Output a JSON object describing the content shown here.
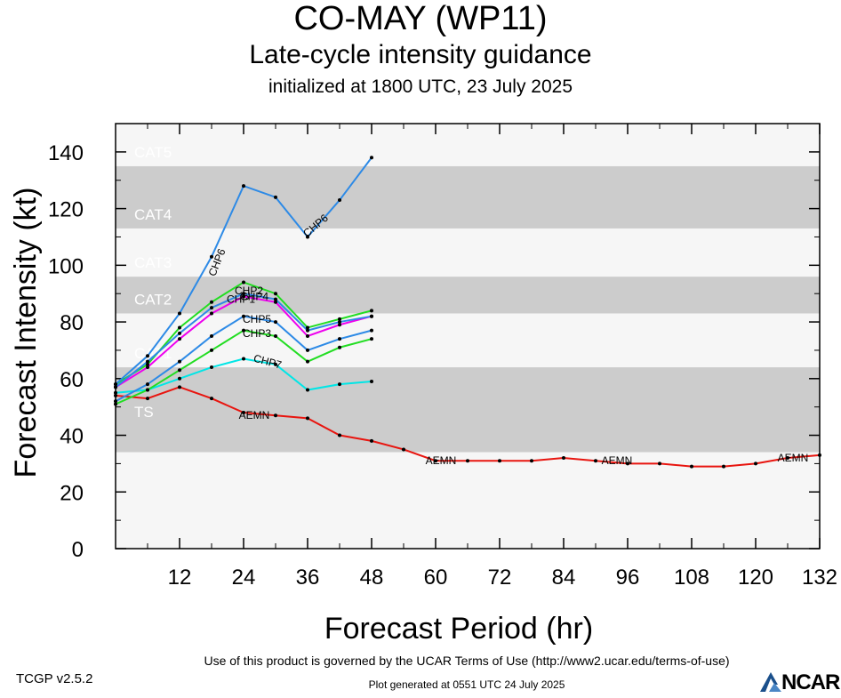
{
  "title": "CO-MAY (WP11)",
  "subtitle": "Late-cycle intensity guidance",
  "init_line": "initialized at 1800 UTC, 23 July 2025",
  "footer": {
    "terms": "Use of this product is governed by the UCAR Terms of Use (http://www2.ucar.edu/terms-of-use)",
    "version": "TCGP v2.5.2",
    "generated": "Plot generated at 0551 UTC   24 July 2025",
    "logo": "NCAR"
  },
  "chart_data": {
    "type": "line",
    "title": "CO-MAY (WP11)",
    "xlabel": "Forecast Period (hr)",
    "ylabel": "Forecast Intensity (kt)",
    "xlim": [
      0,
      132
    ],
    "ylim": [
      0,
      150
    ],
    "xticks": [
      12,
      24,
      36,
      48,
      60,
      72,
      84,
      96,
      108,
      120,
      132
    ],
    "yticks": [
      0,
      20,
      40,
      60,
      80,
      100,
      120,
      140
    ],
    "bands": [
      {
        "label": "TS",
        "from": 34,
        "to": 64,
        "color": "#cccccc"
      },
      {
        "label": "CAT1",
        "from": 64,
        "to": 83,
        "color": "#f6f6f6"
      },
      {
        "label": "CAT2",
        "from": 83,
        "to": 96,
        "color": "#cccccc"
      },
      {
        "label": "CAT3",
        "from": 96,
        "to": 113,
        "color": "#f6f6f6"
      },
      {
        "label": "CAT4",
        "from": 113,
        "to": 135,
        "color": "#cccccc"
      },
      {
        "label": "CAT5",
        "from": 135,
        "to": 150,
        "color": "#f6f6f6"
      }
    ],
    "series": [
      {
        "name": "AEMN",
        "color": "#e8150f",
        "x": [
          0,
          6,
          12,
          18,
          24,
          30,
          36,
          42,
          48,
          54,
          60,
          66,
          72,
          78,
          84,
          90,
          96,
          102,
          108,
          114,
          120,
          126,
          132
        ],
        "y": [
          54,
          53,
          57,
          53,
          48,
          47,
          46,
          40,
          38,
          35,
          31,
          31,
          31,
          31,
          32,
          31,
          30,
          30,
          29,
          29,
          30,
          32,
          33
        ]
      },
      {
        "name": "CHP7",
        "color": "#00e6e6",
        "x": [
          0,
          6,
          12,
          18,
          24,
          30,
          36,
          42,
          48
        ],
        "y": [
          55,
          56,
          60,
          64,
          67,
          65,
          56,
          58,
          59
        ]
      },
      {
        "name": "CHP3",
        "color": "#22dd22",
        "x": [
          0,
          6,
          12,
          18,
          24,
          30,
          36,
          42,
          48
        ],
        "y": [
          51,
          56,
          63,
          70,
          77,
          75,
          66,
          71,
          74
        ]
      },
      {
        "name": "CHP5",
        "color": "#2d8ae6",
        "x": [
          0,
          6,
          12,
          18,
          24,
          30,
          36,
          42,
          48
        ],
        "y": [
          52,
          58,
          66,
          75,
          82,
          80,
          70,
          74,
          77
        ]
      },
      {
        "name": "CHP4",
        "color": "#ee00ee",
        "x": [
          0,
          6,
          12,
          18,
          24,
          30,
          36,
          42,
          48
        ],
        "y": [
          57,
          64,
          74,
          83,
          89,
          87,
          75,
          79,
          82
        ]
      },
      {
        "name": "CHP2",
        "color": "#22dd22",
        "x": [
          0,
          6,
          12,
          18,
          24,
          30,
          36,
          42,
          48
        ],
        "y": [
          58,
          65,
          78,
          87,
          94,
          90,
          78,
          81,
          84
        ]
      },
      {
        "name": "CHP1",
        "color": "#2d8ae6",
        "x": [
          0,
          6,
          12,
          18,
          24,
          30,
          36,
          42,
          48
        ],
        "y": [
          57,
          66,
          76,
          85,
          90,
          88,
          77,
          80,
          82
        ]
      },
      {
        "name": "CHP6",
        "color": "#2d8ae6",
        "x": [
          0,
          6,
          12,
          18,
          24,
          30,
          36,
          42,
          48
        ],
        "y": [
          58,
          68,
          83,
          103,
          128,
          124,
          110,
          123,
          138
        ]
      }
    ],
    "line_labels": [
      {
        "series": "AEMN",
        "x": 26,
        "y": 47,
        "angle": 0
      },
      {
        "series": "AEMN",
        "x": 61,
        "y": 31,
        "angle": 0
      },
      {
        "series": "AEMN",
        "x": 94,
        "y": 31,
        "angle": 0
      },
      {
        "series": "AEMN",
        "x": 127,
        "y": 32,
        "angle": 0
      },
      {
        "series": "CHP7",
        "x": 28.5,
        "y": 66,
        "angle": 15
      },
      {
        "series": "CHP3",
        "x": 26.5,
        "y": 76,
        "angle": 0
      },
      {
        "series": "CHP5",
        "x": 26.5,
        "y": 81,
        "angle": 0
      },
      {
        "series": "CHP4",
        "x": 26,
        "y": 89,
        "angle": 0
      },
      {
        "series": "CHP2",
        "x": 25,
        "y": 91,
        "angle": 0
      },
      {
        "series": "CHP1",
        "x": 23.5,
        "y": 88,
        "angle": 0
      },
      {
        "series": "CHP6",
        "x": 19,
        "y": 101,
        "angle": -68
      },
      {
        "series": "CHP6",
        "x": 37.5,
        "y": 114,
        "angle": -40
      }
    ]
  }
}
